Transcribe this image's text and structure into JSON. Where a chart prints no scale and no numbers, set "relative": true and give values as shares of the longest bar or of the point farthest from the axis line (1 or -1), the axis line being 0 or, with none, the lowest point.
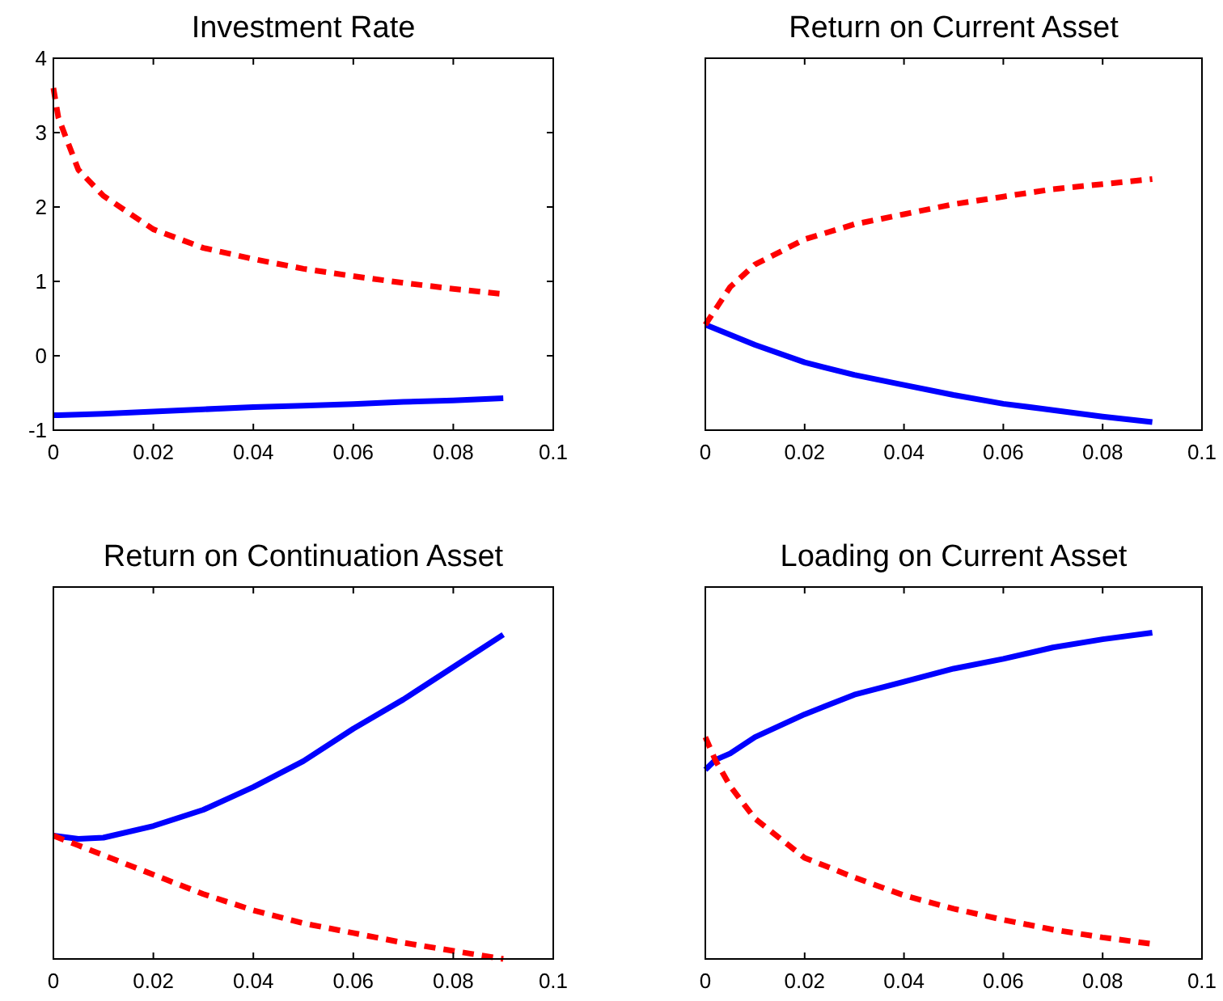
{
  "chart_data": [
    {
      "type": "line",
      "title": "Investment Rate",
      "xlim": [
        0,
        0.1
      ],
      "xticks": [
        0,
        0.02,
        0.04,
        0.06,
        0.08,
        0.1
      ],
      "ylim": [
        -1,
        4
      ],
      "yticks": [
        -1,
        0,
        1,
        2,
        3,
        4
      ],
      "x": [
        0,
        0.001,
        0.005,
        0.01,
        0.02,
        0.03,
        0.04,
        0.05,
        0.06,
        0.07,
        0.08,
        0.09
      ],
      "grid": false,
      "series": [
        {
          "color": "#0000ff",
          "line_style": "solid",
          "values": [
            -0.8,
            -0.8,
            -0.79,
            -0.78,
            -0.75,
            -0.72,
            -0.69,
            -0.67,
            -0.65,
            -0.62,
            -0.6,
            -0.57
          ]
        },
        {
          "color": "#ff0000",
          "line_style": "dashed",
          "values": [
            3.6,
            3.2,
            2.5,
            2.15,
            1.7,
            1.45,
            1.3,
            1.17,
            1.07,
            0.98,
            0.9,
            0.83
          ]
        }
      ]
    },
    {
      "type": "line",
      "title": "Return on Current Asset",
      "xlim": [
        0,
        0.1
      ],
      "xticks": [
        0,
        0.02,
        0.04,
        0.06,
        0.08,
        0.1
      ],
      "relative": true,
      "x": [
        0,
        0.005,
        0.01,
        0.02,
        0.03,
        0.04,
        0.05,
        0.06,
        0.07,
        0.08,
        0.09
      ],
      "grid": false,
      "tick_labels": "x",
      "series": [
        {
          "color": "#0000ff",
          "line_style": "solid",
          "values": [
            0.42,
            0.38,
            0.34,
            0.27,
            0.22,
            0.18,
            0.14,
            0.105,
            0.08,
            0.054,
            0.032
          ]
        },
        {
          "color": "#ff0000",
          "line_style": "dashed",
          "values": [
            0.42,
            0.57,
            0.66,
            0.76,
            0.82,
            0.86,
            0.9,
            0.93,
            0.96,
            0.98,
            1
          ]
        }
      ]
    },
    {
      "type": "line",
      "title": "Return on Continuation Asset",
      "xlim": [
        0,
        0.1
      ],
      "xticks": [
        0,
        0.02,
        0.04,
        0.06,
        0.08,
        0.1
      ],
      "relative": true,
      "x": [
        0,
        0.005,
        0.01,
        0.02,
        0.03,
        0.04,
        0.05,
        0.06,
        0.07,
        0.08,
        0.09
      ],
      "grid": false,
      "tick_labels": "x",
      "series": [
        {
          "color": "#0000ff",
          "line_style": "solid",
          "values": [
            0.38,
            0.37,
            0.374,
            0.41,
            0.46,
            0.53,
            0.61,
            0.71,
            0.8,
            0.9,
            1
          ]
        },
        {
          "color": "#ff0000",
          "line_style": "dashed",
          "values": [
            0.38,
            0.35,
            0.32,
            0.26,
            0.2,
            0.15,
            0.11,
            0.08,
            0.05,
            0.025,
            0
          ]
        }
      ]
    },
    {
      "type": "line",
      "title": "Loading on Current Asset",
      "xlim": [
        0,
        0.1
      ],
      "xticks": [
        0,
        0.02,
        0.04,
        0.06,
        0.08,
        0.1
      ],
      "relative": true,
      "x": [
        0,
        0.002,
        0.005,
        0.01,
        0.02,
        0.03,
        0.04,
        0.05,
        0.06,
        0.07,
        0.08,
        0.09
      ],
      "grid": false,
      "tick_labels": "x",
      "series": [
        {
          "color": "#0000ff",
          "line_style": "solid",
          "values": [
            0.58,
            0.61,
            0.63,
            0.68,
            0.75,
            0.81,
            0.85,
            0.89,
            0.92,
            0.955,
            0.98,
            1
          ]
        },
        {
          "color": "#ff0000",
          "line_style": "dashed",
          "values": [
            0.68,
            0.61,
            0.53,
            0.43,
            0.31,
            0.25,
            0.195,
            0.154,
            0.12,
            0.09,
            0.066,
            0.046
          ]
        }
      ]
    }
  ]
}
